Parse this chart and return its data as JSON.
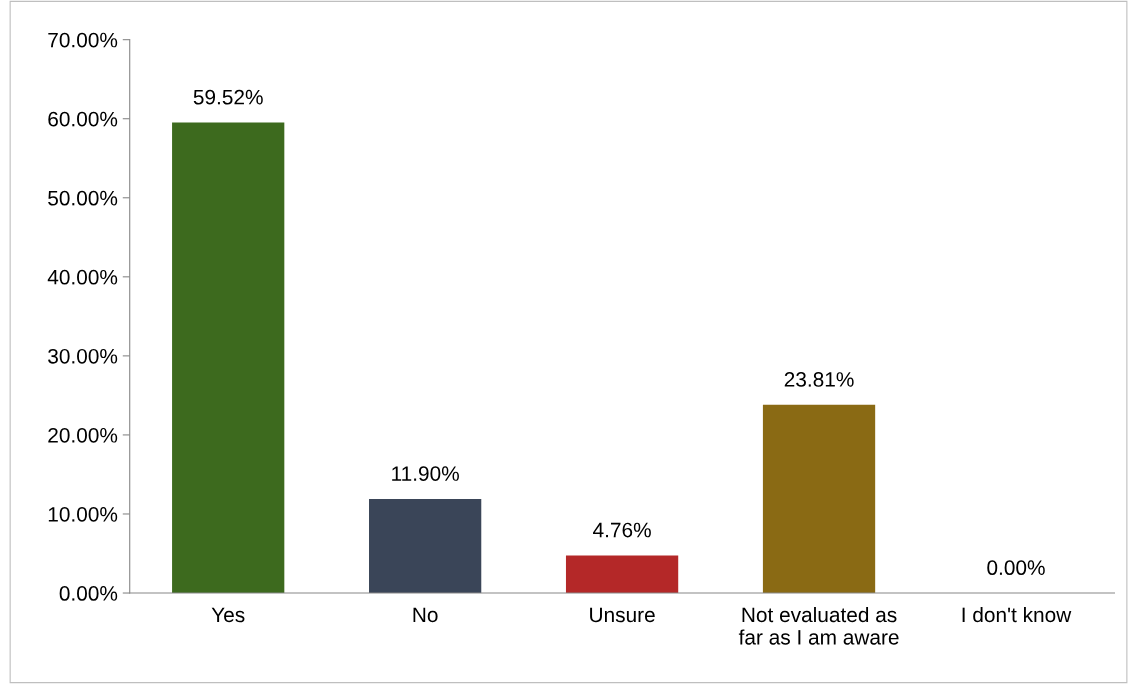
{
  "chart_data": {
    "type": "bar",
    "categories": [
      "Yes",
      "No",
      "Unsure",
      "Not evaluated as\nfar as I am aware",
      "I don't know"
    ],
    "values": [
      59.52,
      11.9,
      4.76,
      23.81,
      0.0
    ],
    "colors": [
      "#3d6a1e",
      "#3a4558",
      "#b42828",
      "#8a6a14",
      "#808080"
    ],
    "value_labels": [
      "59.52%",
      "11.90%",
      "4.76%",
      "23.81%",
      "0.00%"
    ],
    "ylim": [
      0,
      70
    ],
    "yticks": [
      {
        "value": 0,
        "label": "0.00%"
      },
      {
        "value": 10,
        "label": "10.00%"
      },
      {
        "value": 20,
        "label": "20.00%"
      },
      {
        "value": 30,
        "label": "30.00%"
      },
      {
        "value": 40,
        "label": "40.00%"
      },
      {
        "value": 50,
        "label": "50.00%"
      },
      {
        "value": 60,
        "label": "60.00%"
      },
      {
        "value": 70,
        "label": "70.00%"
      }
    ],
    "grid": false,
    "legend": false
  }
}
